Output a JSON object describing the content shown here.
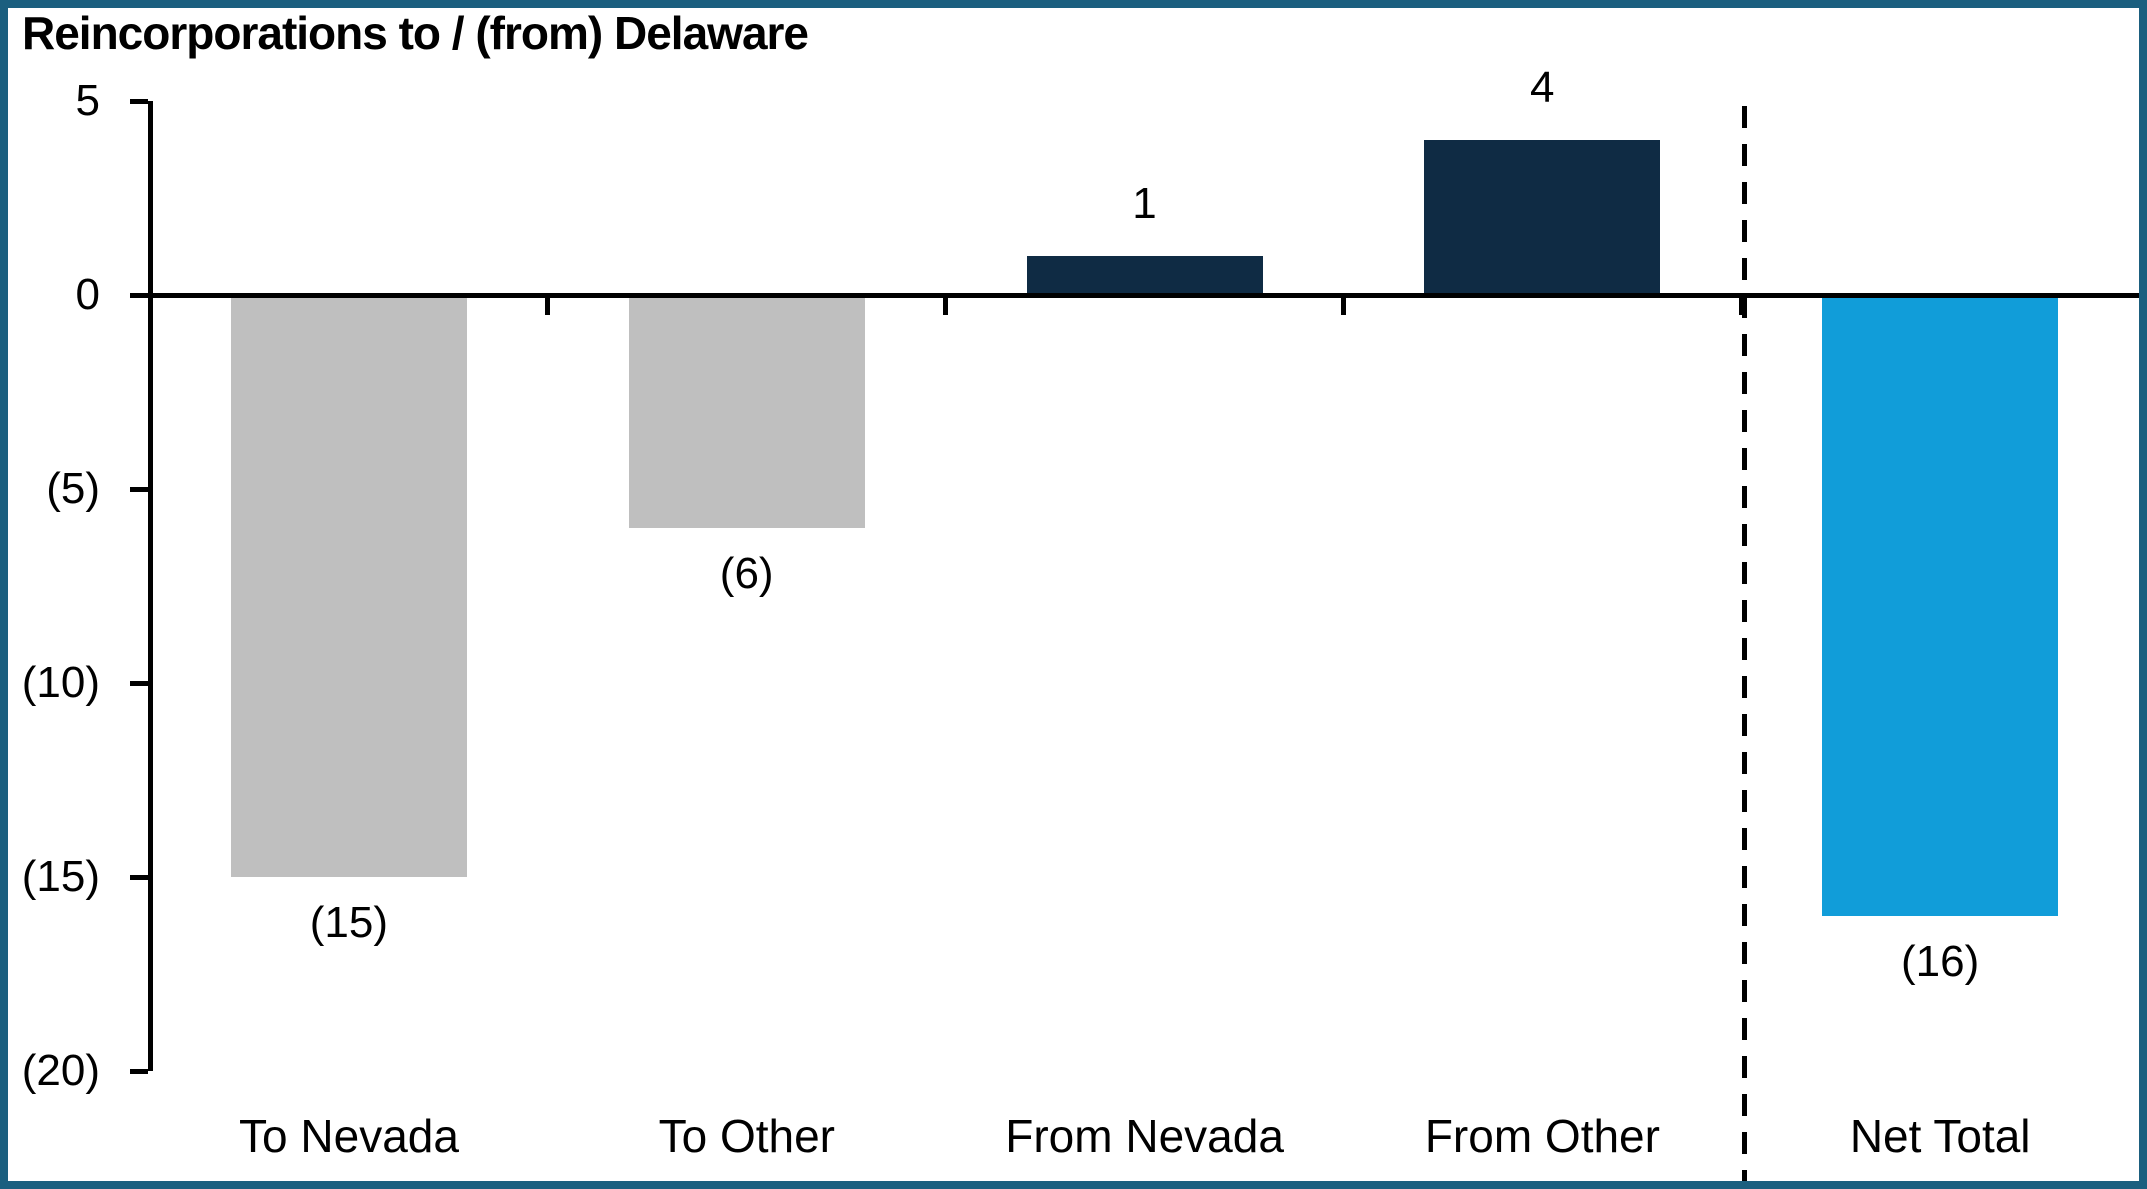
{
  "window": {
    "background_color": "#FFFFFF",
    "border_color": "#1B5F7F"
  },
  "chart_data": {
    "type": "bar",
    "title": "Reincorporations to / (from) Delaware",
    "categories": [
      "To Nevada",
      "To Other",
      "From Nevada",
      "From Other",
      "Net Total"
    ],
    "values": [
      -15,
      -6,
      1,
      4,
      -16
    ],
    "data_labels": [
      "(15)",
      "(6)",
      "1",
      "4",
      "(16)"
    ],
    "bar_colors": [
      "#BFBFBF",
      "#BFBFBF",
      "#0F2B44",
      "#0F2B44",
      "#119DD9"
    ],
    "xlabel": "",
    "ylabel": "",
    "ylim": [
      -20,
      5
    ],
    "y_ticks": [
      5,
      0,
      -5,
      -10,
      -15,
      -20
    ],
    "y_tick_labels": [
      "5",
      "0",
      "(5)",
      "(10)",
      "(15)",
      "(20)"
    ],
    "grid": false,
    "legend": null,
    "separator": {
      "style": "dashed",
      "color": "#000000",
      "position": "before Net Total"
    },
    "axis_color": "#000000",
    "label_color": "#000000"
  }
}
